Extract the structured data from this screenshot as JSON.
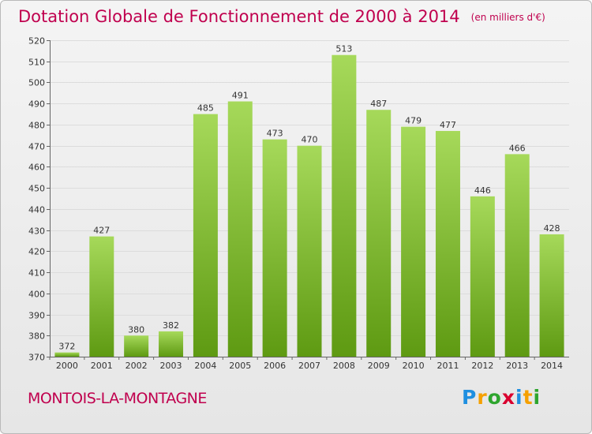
{
  "header": {
    "title": "Dotation Globale de Fonctionnement de 2000 à 2014",
    "unit": "(en milliers d'€)"
  },
  "footer": {
    "commune": "MONTOIS-LA-MONTAGNE",
    "logo": "Proxiti",
    "logo_letters": [
      {
        "ch": "P",
        "color": "#1f8fe0"
      },
      {
        "ch": "r",
        "color": "#f5a000"
      },
      {
        "ch": "o",
        "color": "#2ea52e"
      },
      {
        "ch": "x",
        "color": "#d9002f"
      },
      {
        "ch": "i",
        "color": "#1f8fe0"
      },
      {
        "ch": "t",
        "color": "#f5a000"
      },
      {
        "ch": "i",
        "color": "#2ea52e"
      }
    ]
  },
  "colors": {
    "title": "#c0004e",
    "bar_top": "#a6d95a",
    "bar_bottom": "#5e9a12",
    "grid": "#dcdcdc"
  },
  "chart_data": {
    "type": "bar",
    "title": "Dotation Globale de Fonctionnement de 2000 à 2014",
    "subtitle": "(en milliers d'€)",
    "xlabel": "",
    "ylabel": "",
    "categories": [
      "2000",
      "2001",
      "2002",
      "2003",
      "2004",
      "2005",
      "2006",
      "2007",
      "2008",
      "2009",
      "2010",
      "2011",
      "2012",
      "2013",
      "2014"
    ],
    "values": [
      372,
      427,
      380,
      382,
      485,
      491,
      473,
      470,
      513,
      487,
      479,
      477,
      446,
      466,
      428
    ],
    "ylim": [
      370,
      520
    ],
    "yticks": [
      370,
      380,
      390,
      400,
      410,
      420,
      430,
      440,
      450,
      460,
      470,
      480,
      490,
      500,
      510,
      520
    ],
    "grid": true,
    "data_labels": true
  }
}
